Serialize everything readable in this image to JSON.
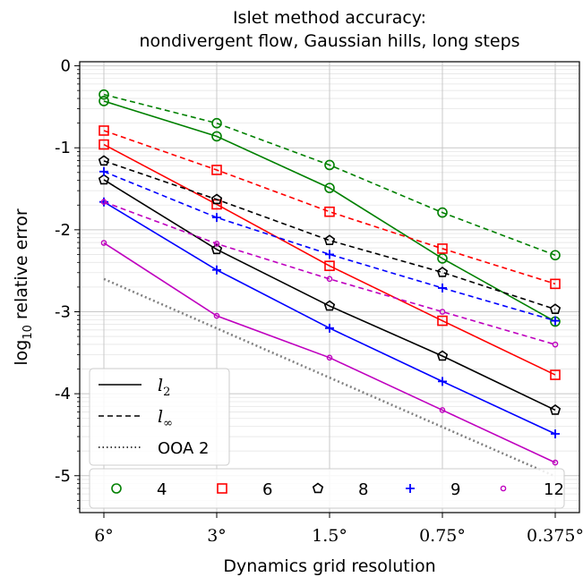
{
  "chart_data": {
    "type": "line",
    "title_line1": "Islet method accuracy:",
    "title_line2": "nondivergent flow, Gaussian hills, long steps",
    "xlabel": "Dynamics grid resolution",
    "ylabel_prefix": "log",
    "ylabel_sub": "10",
    "ylabel_suffix": " relative error",
    "categories": [
      "6°",
      "3°",
      "1.5°",
      "0.75°",
      "0.375°"
    ],
    "ylim": [
      -5.45,
      0.05
    ],
    "yticks": [
      0,
      -1,
      -2,
      -3,
      -4,
      -5
    ],
    "ytick_labels": [
      "0",
      "-1",
      "-2",
      "-3",
      "-4",
      "-5"
    ],
    "grid": true,
    "series": [
      {
        "name": "4",
        "color": "#008000",
        "marker": "circle",
        "l2": [
          -0.43,
          -0.86,
          -1.49,
          -2.35,
          -3.12
        ],
        "linf": [
          -0.35,
          -0.7,
          -1.21,
          -1.79,
          -2.31
        ]
      },
      {
        "name": "6",
        "color": "#ff0000",
        "marker": "square",
        "l2": [
          -0.96,
          -1.69,
          -2.44,
          -3.11,
          -3.77
        ],
        "linf": [
          -0.79,
          -1.27,
          -1.78,
          -2.23,
          -2.66
        ]
      },
      {
        "name": "8",
        "color": "#000000",
        "marker": "pentagon",
        "l2": [
          -1.39,
          -2.24,
          -2.93,
          -3.54,
          -4.2
        ],
        "linf": [
          -1.16,
          -1.63,
          -2.13,
          -2.52,
          -2.97
        ]
      },
      {
        "name": "9",
        "color": "#0000ff",
        "marker": "plus",
        "l2": [
          -1.66,
          -2.49,
          -3.2,
          -3.85,
          -4.49
        ],
        "linf": [
          -1.29,
          -1.85,
          -2.3,
          -2.71,
          -3.11
        ]
      },
      {
        "name": "12",
        "color": "#bf00bf",
        "marker": "dot",
        "l2": [
          -2.16,
          -3.05,
          -3.56,
          -4.2,
          -4.84
        ],
        "linf": [
          -1.66,
          -2.17,
          -2.6,
          -3.0,
          -3.4
        ]
      }
    ],
    "ooa2": {
      "label": "OOA 2",
      "color": "#808080",
      "start": -2.6,
      "slope_per_halving": -0.602
    },
    "legend_styles": {
      "l2_base": "l",
      "l2_sub": "2",
      "linf_base": "l",
      "linf_sub": "∞",
      "ooa_label": "OOA 2",
      "placement": "lower-left"
    }
  }
}
